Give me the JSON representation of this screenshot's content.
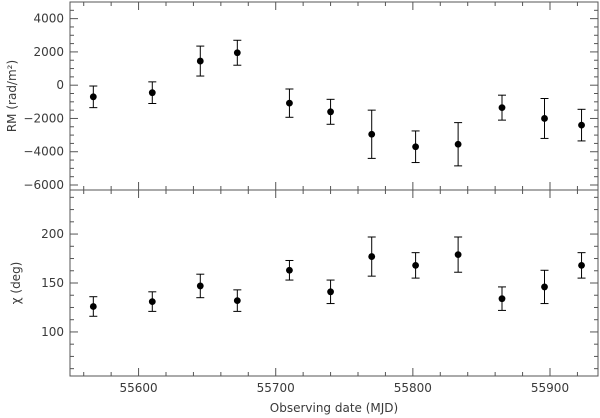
{
  "chart_data": [
    {
      "type": "scatter",
      "title": "",
      "xlabel": "Observing date (MJD)",
      "ylabel": "RM (rad/m²)",
      "xlim": [
        55550,
        55935
      ],
      "ylim": [
        -6300,
        5000
      ],
      "x_ticks": [
        55600,
        55700,
        55800,
        55900
      ],
      "y_ticks": [
        -6000,
        -4000,
        -2000,
        0,
        2000,
        4000
      ],
      "grid": false,
      "series": [
        {
          "x": [
            55567,
            55610,
            55645,
            55672,
            55710,
            55740,
            55770,
            55802,
            55833,
            55865,
            55896,
            55923
          ],
          "y": [
            -700,
            -450,
            1450,
            1950,
            -1080,
            -1600,
            -2950,
            -3700,
            -3550,
            -1350,
            -2000,
            -2400
          ],
          "yerr": [
            650,
            650,
            900,
            750,
            850,
            750,
            1450,
            950,
            1300,
            750,
            1200,
            950
          ]
        }
      ]
    },
    {
      "type": "scatter",
      "title": "",
      "xlabel": "Observing date (MJD)",
      "ylabel": "χ (deg)",
      "xlim": [
        55550,
        55935
      ],
      "ylim": [
        55,
        245
      ],
      "x_ticks": [
        55600,
        55700,
        55800,
        55900
      ],
      "y_ticks": [
        100,
        150,
        200
      ],
      "grid": false,
      "series": [
        {
          "x": [
            55567,
            55610,
            55645,
            55672,
            55710,
            55740,
            55770,
            55802,
            55833,
            55865,
            55896,
            55923
          ],
          "y": [
            126,
            131,
            147,
            132,
            163,
            141,
            177,
            168,
            179,
            134,
            146,
            168
          ],
          "yerr": [
            10,
            10,
            12,
            11,
            10,
            12,
            20,
            13,
            18,
            12,
            17,
            13
          ]
        }
      ]
    }
  ],
  "colors": {
    "ink": "#000000",
    "axis": "#555555",
    "text": "#3a3a3a"
  }
}
